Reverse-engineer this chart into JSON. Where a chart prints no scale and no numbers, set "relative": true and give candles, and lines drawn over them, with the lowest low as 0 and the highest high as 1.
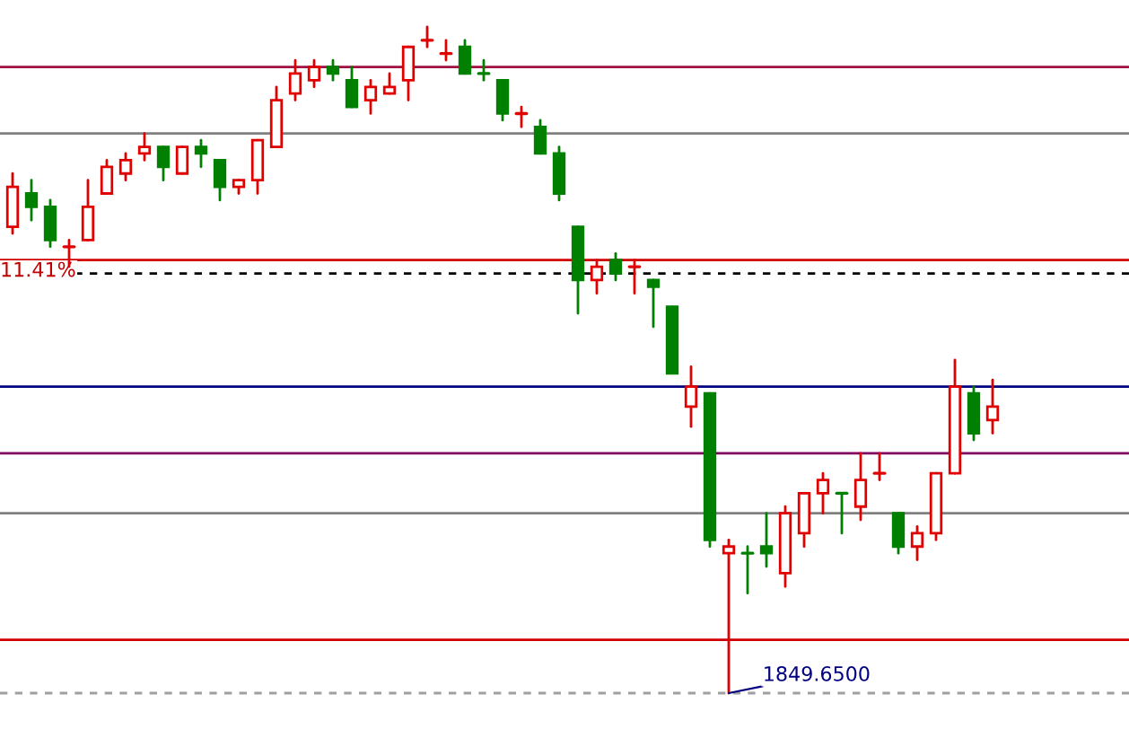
{
  "chart_data": {
    "type": "candlestick",
    "relative": true,
    "categories": [
      null,
      null,
      null,
      null,
      null,
      null,
      null,
      null,
      null,
      null,
      null,
      null,
      null,
      null,
      null,
      null,
      null,
      null,
      null,
      null,
      null,
      null,
      null,
      null,
      null,
      null,
      null,
      null,
      null,
      null,
      null,
      null,
      null,
      null,
      null,
      null,
      null,
      null,
      null,
      null,
      null,
      null,
      null,
      null,
      null,
      null,
      null,
      null,
      null,
      null,
      null,
      null,
      null,
      null,
      null,
      null,
      null,
      null,
      null,
      null
    ],
    "ohlc": [
      [
        0.7,
        0.78,
        0.69,
        0.76
      ],
      [
        0.75,
        0.77,
        0.71,
        0.73
      ],
      [
        0.73,
        0.74,
        0.67,
        0.68
      ],
      [
        0.67,
        0.68,
        0.64,
        0.67
      ],
      [
        0.68,
        0.77,
        0.68,
        0.73
      ],
      [
        0.75,
        0.8,
        0.75,
        0.79
      ],
      [
        0.78,
        0.81,
        0.77,
        0.8
      ],
      [
        0.81,
        0.84,
        0.8,
        0.82
      ],
      [
        0.82,
        0.82,
        0.77,
        0.79
      ],
      [
        0.78,
        0.82,
        0.78,
        0.82
      ],
      [
        0.82,
        0.83,
        0.79,
        0.81
      ],
      [
        0.8,
        0.8,
        0.74,
        0.76
      ],
      [
        0.76,
        0.77,
        0.75,
        0.77
      ],
      [
        0.77,
        0.83,
        0.75,
        0.83
      ],
      [
        0.82,
        0.91,
        0.82,
        0.89
      ],
      [
        0.9,
        0.95,
        0.89,
        0.93
      ],
      [
        0.92,
        0.95,
        0.91,
        0.94
      ],
      [
        0.94,
        0.95,
        0.92,
        0.93
      ],
      [
        0.92,
        0.94,
        0.88,
        0.88
      ],
      [
        0.89,
        0.92,
        0.87,
        0.91
      ],
      [
        0.9,
        0.93,
        0.9,
        0.91
      ],
      [
        0.92,
        0.97,
        0.89,
        0.97
      ],
      [
        0.98,
        1.0,
        0.97,
        0.98
      ],
      [
        0.96,
        0.98,
        0.95,
        0.96
      ],
      [
        0.97,
        0.98,
        0.93,
        0.93
      ],
      [
        0.93,
        0.95,
        0.92,
        0.93
      ],
      [
        0.92,
        0.92,
        0.86,
        0.87
      ],
      [
        0.87,
        0.88,
        0.85,
        0.87
      ],
      [
        0.85,
        0.86,
        0.81,
        0.81
      ],
      [
        0.81,
        0.82,
        0.74,
        0.75
      ],
      [
        0.7,
        0.7,
        0.57,
        0.62
      ],
      [
        0.62,
        0.65,
        0.6,
        0.64
      ],
      [
        0.65,
        0.66,
        0.62,
        0.63
      ],
      [
        0.64,
        0.65,
        0.6,
        0.64
      ],
      [
        0.62,
        0.62,
        0.55,
        0.61
      ],
      [
        0.58,
        0.58,
        0.48,
        0.48
      ],
      [
        0.43,
        0.49,
        0.4,
        0.46
      ],
      [
        0.45,
        0.45,
        0.22,
        0.23
      ],
      [
        0.21,
        0.23,
        0.0,
        0.22
      ],
      [
        0.21,
        0.22,
        0.15,
        0.21
      ],
      [
        0.22,
        0.27,
        0.19,
        0.21
      ],
      [
        0.18,
        0.28,
        0.16,
        0.27
      ],
      [
        0.24,
        0.3,
        0.22,
        0.3
      ],
      [
        0.3,
        0.33,
        0.27,
        0.32
      ],
      [
        0.3,
        0.3,
        0.24,
        0.3
      ],
      [
        0.28,
        0.36,
        0.26,
        0.32
      ],
      [
        0.33,
        0.36,
        0.32,
        0.33
      ],
      [
        0.27,
        0.27,
        0.21,
        0.22
      ],
      [
        0.22,
        0.25,
        0.2,
        0.24
      ],
      [
        0.24,
        0.33,
        0.23,
        0.33
      ],
      [
        0.33,
        0.5,
        0.33,
        0.46
      ],
      [
        0.45,
        0.46,
        0.38,
        0.39
      ],
      [
        0.41,
        0.47,
        0.39,
        0.43
      ],
      null,
      null,
      null,
      null,
      null,
      null,
      null
    ],
    "colors": [
      "#e00000",
      "#008000",
      "#008000",
      "#e00000",
      "#e00000",
      "#e00000",
      "#e00000",
      "#e00000",
      "#008000",
      "#e00000",
      "#008000",
      "#008000",
      "#e00000",
      "#e00000",
      "#e00000",
      "#e00000",
      "#e00000",
      "#008000",
      "#008000",
      "#e00000",
      "#e00000",
      "#e00000",
      "#e00000",
      "#e00000",
      "#008000",
      "#008000",
      "#008000",
      "#e00000",
      "#008000",
      "#008000",
      "#008000",
      "#e00000",
      "#008000",
      "#e00000",
      "#008000",
      "#008000",
      "#e00000",
      "#008000",
      "#e00000",
      "#008000",
      "#008000",
      "#e00000",
      "#e00000",
      "#e00000",
      "#008000",
      "#e00000",
      "#e00000",
      "#008000",
      "#e00000",
      "#e00000",
      "#e00000",
      "#008000",
      "#e00000",
      null,
      null,
      null,
      null,
      null,
      null,
      null
    ],
    "ref_lines": [
      {
        "axis": "y",
        "value": 0.94,
        "color": "#a01040"
      },
      {
        "axis": "y",
        "value": 0.84,
        "color": "#808080"
      },
      {
        "axis": "y",
        "value": 0.65,
        "color": "#d00000"
      },
      {
        "axis": "y",
        "value": 0.63,
        "color": "#000000",
        "line_style": "dashed"
      },
      {
        "axis": "y",
        "value": 0.46,
        "color": "#000080"
      },
      {
        "axis": "y",
        "value": 0.36,
        "color": "#800060"
      },
      {
        "axis": "y",
        "value": 0.27,
        "color": "#808080"
      },
      {
        "axis": "y",
        "value": 0.08,
        "color": "#d00000"
      },
      {
        "axis": "y",
        "value": 0.0,
        "color": "#a0a0a0",
        "line_style": "dashed"
      }
    ],
    "annotations": [
      "11.41%",
      {
        "text": "1849.6500",
        "y": 0.0
      }
    ]
  }
}
